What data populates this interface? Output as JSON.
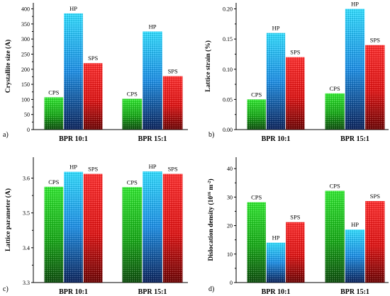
{
  "chart_data": [
    {
      "type": "bar",
      "panel_label": "a)",
      "categories": [
        "BPR 10:1",
        "BPR 15:1"
      ],
      "series": [
        {
          "name": "CPS",
          "values": [
            107,
            102
          ]
        },
        {
          "name": "HP",
          "values": [
            385,
            325
          ]
        },
        {
          "name": "SPS",
          "values": [
            220,
            177
          ]
        }
      ],
      "ylabel": "Crystallite size (A)",
      "ylim": [
        0,
        420
      ],
      "yticks": [
        0,
        50,
        100,
        150,
        200,
        250,
        300,
        350,
        400
      ],
      "ytick_labels": [
        "0",
        "50",
        "100",
        "150",
        "200",
        "250",
        "300",
        "350",
        "400"
      ],
      "grid": false,
      "legend": "none",
      "colors": {
        "CPS": "#14b414",
        "HP": "#1ec8ff",
        "SPS": "#ff1a1a"
      }
    },
    {
      "type": "bar",
      "panel_label": "b)",
      "categories": [
        "BPR 10:1",
        "BPR 15:1"
      ],
      "series": [
        {
          "name": "CPS",
          "values": [
            0.05,
            0.06
          ]
        },
        {
          "name": "HP",
          "values": [
            0.16,
            0.2
          ]
        },
        {
          "name": "SPS",
          "values": [
            0.12,
            0.14
          ]
        }
      ],
      "ylabel": "Lattice strain (%)",
      "ylim": [
        0,
        0.21
      ],
      "yticks": [
        0,
        0.05,
        0.1,
        0.15,
        0.2
      ],
      "ytick_labels": [
        "0.00",
        "0.05",
        "0.10",
        "0.15",
        "0.20"
      ],
      "grid": false,
      "legend": "none",
      "colors": {
        "CPS": "#14b414",
        "HP": "#1ec8ff",
        "SPS": "#ff1a1a"
      }
    },
    {
      "type": "bar",
      "panel_label": "c)",
      "categories": [
        "BPR 10:1",
        "BPR 15:1"
      ],
      "series": [
        {
          "name": "CPS",
          "values": [
            3.575,
            3.574
          ]
        },
        {
          "name": "HP",
          "values": [
            3.618,
            3.619
          ]
        },
        {
          "name": "SPS",
          "values": [
            3.612,
            3.612
          ]
        }
      ],
      "ylabel": "Lattice parameter (A)",
      "ylim": [
        3.3,
        3.66
      ],
      "yticks": [
        3.3,
        3.4,
        3.5,
        3.6
      ],
      "ytick_labels": [
        "3.3",
        "3.4",
        "3.5",
        "3.6"
      ],
      "grid": false,
      "legend": "none",
      "colors": {
        "CPS": "#14b414",
        "HP": "#1ec8ff",
        "SPS": "#ff1a1a"
      }
    },
    {
      "type": "bar",
      "panel_label": "d)",
      "categories": [
        "BPR 10:1",
        "BPR 15:1"
      ],
      "series": [
        {
          "name": "CPS",
          "values": [
            28.2,
            32.2
          ]
        },
        {
          "name": "HP",
          "values": [
            14,
            18.6
          ]
        },
        {
          "name": "SPS",
          "values": [
            21.2,
            28.6
          ]
        }
      ],
      "ylabel": "Dislocation density (10",
      "ylabel_sup": "16",
      "ylabel_mid": " m",
      "ylabel_sup2": "-2",
      "ylabel_end": ")",
      "ylim": [
        0,
        44
      ],
      "yticks": [
        0,
        10,
        20,
        30,
        40
      ],
      "ytick_labels": [
        "0",
        "10",
        "20",
        "30",
        "40"
      ],
      "grid": false,
      "legend": "none",
      "colors": {
        "CPS": "#14b414",
        "HP": "#1ec8ff",
        "SPS": "#ff1a1a"
      }
    }
  ]
}
